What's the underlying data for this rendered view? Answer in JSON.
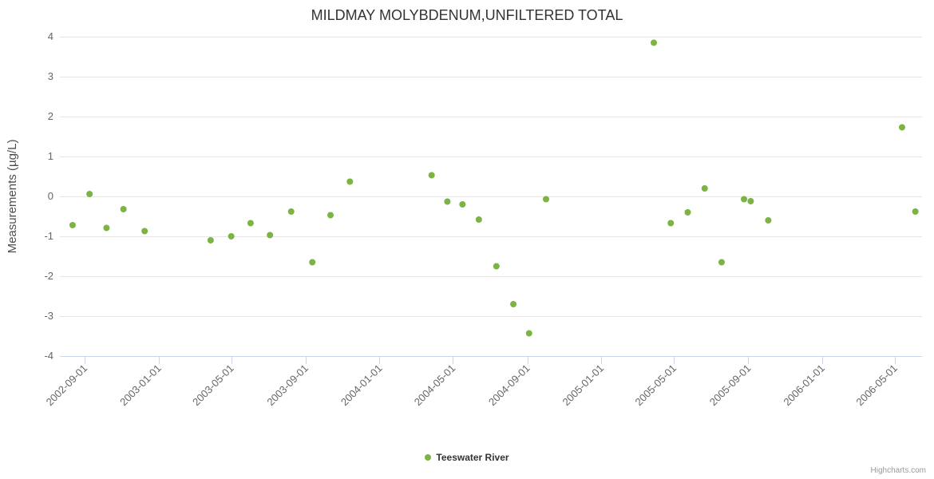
{
  "chart_data": {
    "type": "scatter",
    "title": "MILDMAY MOLYBDENUM,UNFILTERED TOTAL",
    "xlabel": "",
    "ylabel": "Measurements (µg/L)",
    "ylim": [
      -4,
      4
    ],
    "y_ticks": [
      -4,
      -3,
      -2,
      -1,
      0,
      1,
      2,
      3,
      4
    ],
    "x_tick_labels": [
      "2002-09-01",
      "2003-01-01",
      "2003-05-01",
      "2003-09-01",
      "2004-01-01",
      "2004-05-01",
      "2004-09-01",
      "2005-01-01",
      "2005-05-01",
      "2005-09-01",
      "2006-01-01",
      "2006-05-01"
    ],
    "x_range": [
      "2002-07-22",
      "2006-06-15"
    ],
    "grid": "horizontal",
    "legend_position": "bottom-center",
    "colors": {
      "marker": "#7cb342",
      "gridline": "#e6e6e6",
      "axis_line": "#ccd6eb",
      "tick_label": "#666666",
      "title_text": "#333333"
    },
    "series": [
      {
        "name": "Teeswater River",
        "color": "#7cb342",
        "data": [
          [
            "2002-08-12",
            -0.72
          ],
          [
            "2002-09-09",
            0.06
          ],
          [
            "2002-10-07",
            -0.79
          ],
          [
            "2002-11-04",
            -0.32
          ],
          [
            "2002-12-09",
            -0.87
          ],
          [
            "2003-03-28",
            -1.1
          ],
          [
            "2003-05-01",
            -1.0
          ],
          [
            "2003-06-02",
            -0.67
          ],
          [
            "2003-07-04",
            -0.97
          ],
          [
            "2003-08-08",
            -0.38
          ],
          [
            "2003-09-12",
            -1.65
          ],
          [
            "2003-10-12",
            -0.47
          ],
          [
            "2003-11-13",
            0.37
          ],
          [
            "2004-03-27",
            0.53
          ],
          [
            "2004-04-22",
            -0.13
          ],
          [
            "2004-05-17",
            -0.2
          ],
          [
            "2004-06-13",
            -0.58
          ],
          [
            "2004-07-12",
            -1.75
          ],
          [
            "2004-08-09",
            -2.7
          ],
          [
            "2004-09-04",
            -3.43
          ],
          [
            "2004-10-02",
            -0.07
          ],
          [
            "2005-03-29",
            3.85
          ],
          [
            "2005-04-26",
            -0.67
          ],
          [
            "2005-05-24",
            -0.4
          ],
          [
            "2005-06-21",
            0.2
          ],
          [
            "2005-07-19",
            -1.65
          ],
          [
            "2005-08-25",
            -0.07
          ],
          [
            "2005-09-05",
            -0.12
          ],
          [
            "2005-10-04",
            -0.6
          ],
          [
            "2006-05-13",
            1.73
          ],
          [
            "2006-06-04",
            -0.38
          ]
        ]
      }
    ]
  },
  "credit": {
    "label": "Highcharts.com"
  }
}
